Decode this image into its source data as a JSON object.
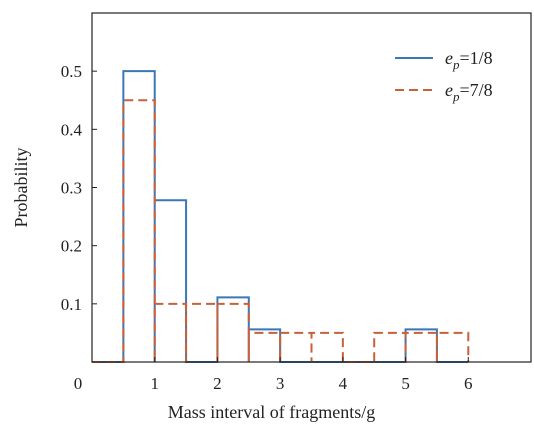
{
  "chart_data": {
    "type": "histogram-step",
    "title": "",
    "xlabel": "Mass interval of fragments/g",
    "ylabel": "Probability",
    "xlim": [
      0,
      7
    ],
    "ylim": [
      0,
      0.6
    ],
    "xticks": [
      0,
      1,
      2,
      3,
      4,
      5,
      6
    ],
    "xtick_labels": [
      "0",
      "1",
      "2",
      "3",
      "4",
      "5",
      "6"
    ],
    "yticks": [
      0.1,
      0.2,
      0.3,
      0.4,
      0.5
    ],
    "ytick_labels": [
      "0.1",
      "0.2",
      "0.3",
      "0.4",
      "0.5"
    ],
    "grid": false,
    "legend_position": "top-right",
    "bin_edges": [
      0.5,
      1.0,
      1.5,
      2.0,
      2.5,
      3.0,
      3.5,
      4.0,
      4.5,
      5.0,
      5.5,
      6.0
    ],
    "series": [
      {
        "name": "e_p=1/8",
        "legend_main": "e",
        "legend_sub": "p",
        "legend_rest": "=1/8",
        "color": "#3a78b5",
        "dash": "solid",
        "values": [
          0.5,
          0.278,
          0,
          0.111,
          0.056,
          0,
          0,
          0,
          0,
          0.056,
          0,
          0
        ]
      },
      {
        "name": "e_p=7/8",
        "legend_main": "e",
        "legend_sub": "p",
        "legend_rest": "=7/8",
        "color": "#c8613a",
        "dash": "dashed",
        "values": [
          0.45,
          0.1,
          0.1,
          0.1,
          0.05,
          0.05,
          0.05,
          0,
          0.05,
          0.05,
          0.05,
          0
        ]
      }
    ]
  }
}
